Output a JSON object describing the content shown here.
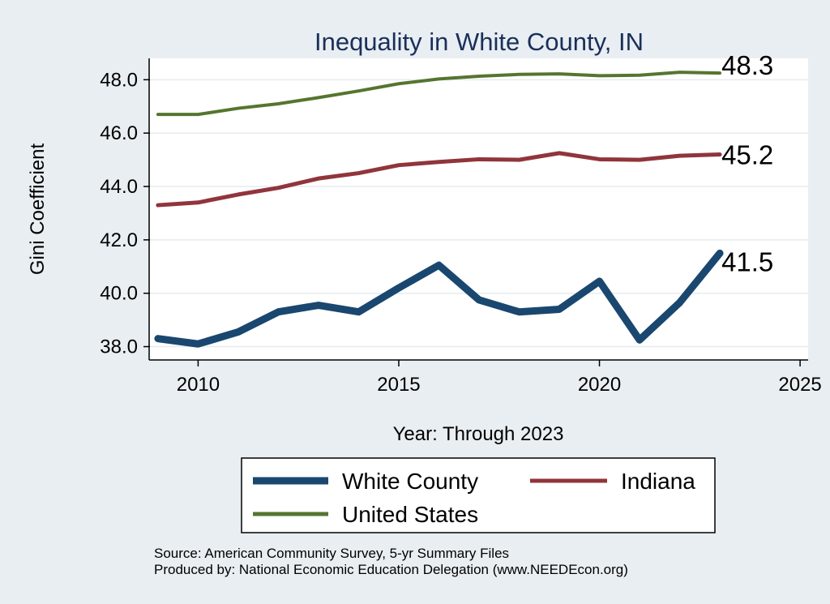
{
  "chart_data": {
    "type": "line",
    "title": "Inequality in White County, IN",
    "xlabel": "Year: Through 2023",
    "ylabel": "Gini Coefficient",
    "xlim": [
      2008.8,
      2025.2
    ],
    "ylim": [
      37.5,
      48.8
    ],
    "x_ticks": [
      2010,
      2015,
      2020,
      2025
    ],
    "y_ticks": [
      38.0,
      40.0,
      42.0,
      44.0,
      46.0,
      48.0
    ],
    "y_tick_labels": [
      "38.0",
      "40.0",
      "42.0",
      "44.0",
      "46.0",
      "48.0"
    ],
    "x": [
      2009,
      2010,
      2011,
      2012,
      2013,
      2014,
      2015,
      2016,
      2017,
      2018,
      2019,
      2020,
      2021,
      2022,
      2023
    ],
    "series": [
      {
        "name": "White County",
        "color": "#1a476f",
        "values": [
          38.3,
          38.1,
          38.55,
          39.3,
          39.55,
          39.3,
          40.2,
          41.05,
          39.75,
          39.3,
          39.4,
          40.45,
          38.25,
          39.65,
          41.5
        ],
        "end_label": "41.5"
      },
      {
        "name": "Indiana",
        "color": "#90353b",
        "values": [
          43.3,
          43.4,
          43.7,
          43.95,
          44.3,
          44.5,
          44.8,
          44.92,
          45.02,
          45.0,
          45.25,
          45.02,
          45.0,
          45.15,
          45.2
        ],
        "end_label": "45.2"
      },
      {
        "name": "United States",
        "color": "#55752f",
        "values": [
          46.7,
          46.7,
          46.93,
          47.1,
          47.33,
          47.58,
          47.85,
          48.03,
          48.13,
          48.2,
          48.22,
          48.15,
          48.17,
          48.28,
          48.25
        ],
        "end_label": "48.3"
      }
    ],
    "legend": [
      "White County",
      "Indiana",
      "United States"
    ],
    "legend_position": "bottom",
    "grid": true
  },
  "footer": {
    "source_line": "Source: American Community Survey, 5-yr Summary Files",
    "produced_line": "Produced by: National Economic Education Delegation (www.NEEDEcon.org)"
  }
}
